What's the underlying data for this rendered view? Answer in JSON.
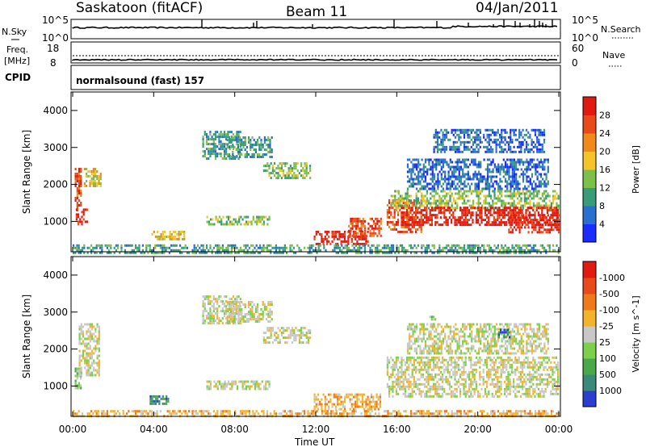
{
  "header": {
    "station": "Saskatoon (fitACF)",
    "beam": "Beam 11",
    "date": "04/Jan/2011"
  },
  "noise_panel": {
    "left_label": "N.Sky",
    "left_ticks": [
      "10^5",
      "10^0"
    ],
    "right_label": "N.Search",
    "right_ticks": [
      "10^5",
      "10^0"
    ]
  },
  "freq_panel": {
    "left_label_1": "Freq.",
    "left_label_2": "[MHz]",
    "left_ticks": [
      "18",
      "8"
    ],
    "right_label": "Nave",
    "right_ticks": [
      "60",
      "0"
    ]
  },
  "cpid_panel": {
    "label": "CPID",
    "text": "normalsound (fast) 157"
  },
  "chart_data": [
    {
      "type": "heatmap",
      "title": "",
      "ylabel": "Slant Range [km]",
      "ylim": [
        180,
        4500
      ],
      "yticks": [
        "1000",
        "2000",
        "3000",
        "4000"
      ],
      "xlim": [
        "00:00",
        "24:00"
      ],
      "colorbar_label": "Power [dB]",
      "colorbar_ticks": [
        "4",
        "8",
        "12",
        "16",
        "20",
        "24",
        "28"
      ],
      "colors": [
        "#1a2cff",
        "#2a6fd0",
        "#3a9a7a",
        "#7cc04a",
        "#f4c42a",
        "#f08a1a",
        "#e84a1a",
        "#e01a10"
      ],
      "regions": [
        {
          "t0": 0.1,
          "t1": 0.45,
          "r0": 1300,
          "r1": 2450,
          "level": 6
        },
        {
          "t0": 0.15,
          "t1": 0.7,
          "r0": 950,
          "r1": 1350,
          "level": 7
        },
        {
          "t0": 0.55,
          "t1": 1.35,
          "r0": 1950,
          "r1": 2450,
          "level": 4
        },
        {
          "t0": 6.4,
          "t1": 8.3,
          "r0": 2700,
          "r1": 3450,
          "level": 2
        },
        {
          "t0": 7.6,
          "t1": 9.8,
          "r0": 2750,
          "r1": 3300,
          "level": 2
        },
        {
          "t0": 9.4,
          "t1": 11.7,
          "r0": 2200,
          "r1": 2600,
          "level": 3
        },
        {
          "t0": 3.8,
          "t1": 5.5,
          "r0": 550,
          "r1": 750,
          "level": 4
        },
        {
          "t0": 6.6,
          "t1": 9.7,
          "r0": 950,
          "r1": 1150,
          "level": 3
        },
        {
          "t0": 11.9,
          "t1": 14.6,
          "r0": 400,
          "r1": 750,
          "level": 7
        },
        {
          "t0": 13.6,
          "t1": 15.2,
          "r0": 600,
          "r1": 1100,
          "level": 6
        },
        {
          "t0": 15.5,
          "t1": 17.2,
          "r0": 700,
          "r1": 1600,
          "level": 6
        },
        {
          "t0": 15.7,
          "t1": 24,
          "r0": 1350,
          "r1": 1850,
          "level": 3
        },
        {
          "t0": 16.2,
          "t1": 24,
          "r0": 900,
          "r1": 1400,
          "level": 7
        },
        {
          "t0": 21.5,
          "t1": 24,
          "r0": 700,
          "r1": 1200,
          "level": 7
        },
        {
          "t0": 16.5,
          "t1": 23.5,
          "r0": 1850,
          "r1": 2700,
          "level": 1
        },
        {
          "t0": 17.8,
          "t1": 23.3,
          "r0": 2900,
          "r1": 3500,
          "level": 1
        },
        {
          "t0": 0,
          "t1": 24,
          "r0": 180,
          "r1": 380,
          "level": 2
        }
      ]
    },
    {
      "type": "heatmap",
      "title": "",
      "ylabel": "Slant Range [km]",
      "ylim": [
        180,
        4500
      ],
      "yticks": [
        "1000",
        "2000",
        "3000",
        "4000"
      ],
      "xlim": [
        "00:00",
        "24:00"
      ],
      "colorbar_label": "Velocity [m s^-1]",
      "colorbar_ticks": [
        "1000",
        "500",
        "100",
        "25",
        "-25",
        "-100",
        "-500",
        "-1000"
      ],
      "colors": [
        "#2a3fd0",
        "#3a8a7a",
        "#4aa84a",
        "#7cd04a",
        "#c8c8c8",
        "#f4b42a",
        "#f07a1a",
        "#e84a1a",
        "#e01a10"
      ],
      "regions": [
        {
          "t0": 0.1,
          "t1": 0.45,
          "r0": 950,
          "r1": 1500,
          "level": 3
        },
        {
          "t0": 0.3,
          "t1": 1.35,
          "r0": 1300,
          "r1": 2700,
          "level": 4
        },
        {
          "t0": 6.4,
          "t1": 8.3,
          "r0": 2700,
          "r1": 3450,
          "level": 4
        },
        {
          "t0": 7.6,
          "t1": 9.8,
          "r0": 2750,
          "r1": 3300,
          "level": 4
        },
        {
          "t0": 9.4,
          "t1": 11.7,
          "r0": 2200,
          "r1": 2600,
          "level": 4
        },
        {
          "t0": 3.8,
          "t1": 4.7,
          "r0": 550,
          "r1": 750,
          "level": 1
        },
        {
          "t0": 6.6,
          "t1": 9.7,
          "r0": 950,
          "r1": 1150,
          "level": 4
        },
        {
          "t0": 11.9,
          "t1": 15.2,
          "r0": 400,
          "r1": 800,
          "level": 5
        },
        {
          "t0": 15.5,
          "t1": 24,
          "r0": 700,
          "r1": 1800,
          "level": 4
        },
        {
          "t0": 16.5,
          "t1": 23.5,
          "r0": 1850,
          "r1": 2700,
          "level": 4
        },
        {
          "t0": 0,
          "t1": 24,
          "r0": 180,
          "r1": 350,
          "level": 5
        },
        {
          "t0": 21.0,
          "t1": 21.6,
          "r0": 2300,
          "r1": 2550,
          "level": 1
        },
        {
          "t0": 17.6,
          "t1": 18.0,
          "r0": 2650,
          "r1": 2900,
          "level": 3
        }
      ]
    }
  ],
  "time_axis": {
    "ticks": [
      "00:00",
      "04:00",
      "08:00",
      "12:00",
      "16:00",
      "20:00",
      "00:00"
    ],
    "label": "Time UT"
  }
}
